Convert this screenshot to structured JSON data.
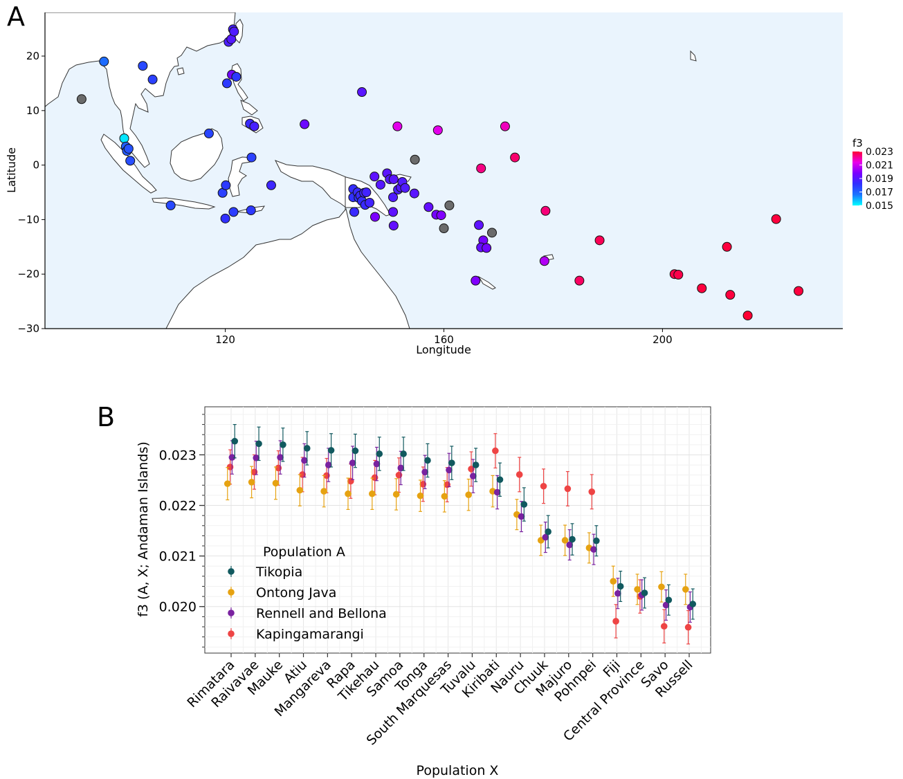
{
  "chart_data": [
    {
      "panel": "A",
      "type": "scatter",
      "xlabel": "Longitude",
      "ylabel": "Latitude",
      "xlim": [
        87,
        233
      ],
      "ylim": [
        -30,
        28
      ],
      "x_ticks": [
        120,
        160,
        200
      ],
      "y_ticks": [
        -30,
        -20,
        -10,
        0,
        10,
        20
      ],
      "legend": {
        "title": "f3",
        "placement": "right",
        "ticks": [
          "0.023",
          "0.021",
          "0.019",
          "0.017",
          "0.015"
        ],
        "min": 0.015,
        "max": 0.023
      },
      "colors": {
        "ocean": "#eaf4fd",
        "land": "#ffffff",
        "coast": "#333333",
        "missing": "#6b6b6b"
      },
      "points": [
        {
          "x": 93.7,
          "y": 12.1,
          "f3": null
        },
        {
          "x": 97.8,
          "y": 19.0,
          "f3": 0.0168
        },
        {
          "x": 101.5,
          "y": 4.9,
          "f3": 0.0153
        },
        {
          "x": 101.8,
          "y": 3.4,
          "f3": 0.0171
        },
        {
          "x": 102.0,
          "y": 2.6,
          "f3": 0.0172
        },
        {
          "x": 102.3,
          "y": 3.0,
          "f3": 0.0174
        },
        {
          "x": 102.6,
          "y": 0.8,
          "f3": 0.0175
        },
        {
          "x": 104.9,
          "y": 18.2,
          "f3": 0.0176
        },
        {
          "x": 106.7,
          "y": 15.7,
          "f3": 0.0178
        },
        {
          "x": 110.0,
          "y": -7.4,
          "f3": 0.0176
        },
        {
          "x": 117.0,
          "y": 5.8,
          "f3": 0.0177
        },
        {
          "x": 119.5,
          "y": -5.1,
          "f3": 0.0178
        },
        {
          "x": 120.0,
          "y": -9.8,
          "f3": 0.0182
        },
        {
          "x": 120.1,
          "y": -3.7,
          "f3": 0.018
        },
        {
          "x": 120.3,
          "y": 15.0,
          "f3": 0.018
        },
        {
          "x": 120.6,
          "y": 22.6,
          "f3": 0.0188
        },
        {
          "x": 121.1,
          "y": 23.1,
          "f3": 0.019
        },
        {
          "x": 121.4,
          "y": 24.9,
          "f3": 0.0187
        },
        {
          "x": 121.6,
          "y": 24.5,
          "f3": 0.0189
        },
        {
          "x": 121.2,
          "y": 16.6,
          "f3": 0.0196
        },
        {
          "x": 122.0,
          "y": 16.2,
          "f3": 0.018
        },
        {
          "x": 121.5,
          "y": -8.6,
          "f3": 0.0179
        },
        {
          "x": 124.5,
          "y": 7.6,
          "f3": 0.0184
        },
        {
          "x": 125.3,
          "y": 7.1,
          "f3": 0.0187
        },
        {
          "x": 124.8,
          "y": 1.4,
          "f3": 0.0178
        },
        {
          "x": 124.7,
          "y": -8.3,
          "f3": 0.018
        },
        {
          "x": 128.4,
          "y": -3.7,
          "f3": 0.0185
        },
        {
          "x": 134.5,
          "y": 7.5,
          "f3": 0.0195
        },
        {
          "x": 143.4,
          "y": -4.4,
          "f3": 0.0183
        },
        {
          "x": 143.4,
          "y": -5.9,
          "f3": 0.0182
        },
        {
          "x": 143.6,
          "y": -8.6,
          "f3": 0.0184
        },
        {
          "x": 144.2,
          "y": -5.0,
          "f3": 0.0184
        },
        {
          "x": 144.4,
          "y": -6.0,
          "f3": 0.0182
        },
        {
          "x": 144.7,
          "y": -5.6,
          "f3": 0.0184
        },
        {
          "x": 145.0,
          "y": -6.6,
          "f3": 0.0183
        },
        {
          "x": 145.4,
          "y": -5.1,
          "f3": 0.0185
        },
        {
          "x": 145.6,
          "y": -7.3,
          "f3": 0.0184
        },
        {
          "x": 145.8,
          "y": -5.0,
          "f3": 0.0186
        },
        {
          "x": 146.4,
          "y": -6.9,
          "f3": 0.0186
        },
        {
          "x": 147.3,
          "y": -2.1,
          "f3": 0.0192
        },
        {
          "x": 147.4,
          "y": -9.5,
          "f3": 0.0198
        },
        {
          "x": 148.4,
          "y": -3.6,
          "f3": 0.019
        },
        {
          "x": 149.6,
          "y": -1.5,
          "f3": 0.0191
        },
        {
          "x": 150.1,
          "y": -2.6,
          "f3": 0.019
        },
        {
          "x": 150.8,
          "y": -2.6,
          "f3": 0.0191
        },
        {
          "x": 150.7,
          "y": -5.9,
          "f3": 0.0189
        },
        {
          "x": 150.7,
          "y": -8.6,
          "f3": 0.0192
        },
        {
          "x": 150.8,
          "y": -11.1,
          "f3": 0.0193
        },
        {
          "x": 151.6,
          "y": -4.5,
          "f3": 0.0188
        },
        {
          "x": 152.1,
          "y": -4.1,
          "f3": 0.019
        },
        {
          "x": 152.4,
          "y": -3.1,
          "f3": 0.0189
        },
        {
          "x": 152.9,
          "y": -4.2,
          "f3": 0.0189
        },
        {
          "x": 154.6,
          "y": -5.2,
          "f3": 0.0191
        },
        {
          "x": 157.2,
          "y": -7.7,
          "f3": 0.0193
        },
        {
          "x": 158.6,
          "y": -9.1,
          "f3": 0.0197
        },
        {
          "x": 159.5,
          "y": -9.2,
          "f3": 0.0199
        },
        {
          "x": 145.0,
          "y": 13.4,
          "f3": 0.0191
        },
        {
          "x": 151.5,
          "y": 7.1,
          "f3": 0.0213
        },
        {
          "x": 158.9,
          "y": 6.4,
          "f3": 0.0213
        },
        {
          "x": 154.7,
          "y": 1.0,
          "f3": null
        },
        {
          "x": 161.0,
          "y": -7.4,
          "f3": null
        },
        {
          "x": 160.0,
          "y": -11.6,
          "f3": null
        },
        {
          "x": 168.8,
          "y": -12.4,
          "f3": null
        },
        {
          "x": 166.8,
          "y": -0.6,
          "f3": 0.0223
        },
        {
          "x": 171.2,
          "y": 7.1,
          "f3": 0.0218
        },
        {
          "x": 173.0,
          "y": 1.4,
          "f3": 0.0225
        },
        {
          "x": 166.4,
          "y": -11.0,
          "f3": 0.0192
        },
        {
          "x": 167.2,
          "y": -13.8,
          "f3": 0.0197
        },
        {
          "x": 166.8,
          "y": -15.1,
          "f3": 0.0193
        },
        {
          "x": 167.8,
          "y": -15.2,
          "f3": 0.0196
        },
        {
          "x": 165.8,
          "y": -21.2,
          "f3": 0.0199
        },
        {
          "x": 178.4,
          "y": -17.6,
          "f3": 0.0206
        },
        {
          "x": 178.6,
          "y": -8.4,
          "f3": 0.0224
        },
        {
          "x": 184.8,
          "y": -21.2,
          "f3": 0.0226
        },
        {
          "x": 188.5,
          "y": -13.8,
          "f3": 0.0227
        },
        {
          "x": 202.2,
          "y": -20.0,
          "f3": 0.0228
        },
        {
          "x": 202.9,
          "y": -20.1,
          "f3": 0.0228
        },
        {
          "x": 207.2,
          "y": -22.6,
          "f3": 0.0229
        },
        {
          "x": 211.8,
          "y": -15.0,
          "f3": 0.0229
        },
        {
          "x": 212.4,
          "y": -23.8,
          "f3": 0.0229
        },
        {
          "x": 215.6,
          "y": -27.6,
          "f3": 0.023
        },
        {
          "x": 220.8,
          "y": -9.9,
          "f3": 0.0229
        },
        {
          "x": 224.9,
          "y": -23.1,
          "f3": 0.0229
        }
      ]
    },
    {
      "panel": "B",
      "type": "scatter",
      "xlabel": "Population X",
      "ylabel": "f3 (A, X; Andaman Islands)",
      "ylim": [
        0.01908,
        0.02395
      ],
      "y_ticks": [
        "0.020",
        "0.021",
        "0.022",
        "0.023"
      ],
      "categories": [
        "Rimatara",
        "Raivavae",
        "Mauke",
        "Atiu",
        "Mangareva",
        "Rapa",
        "Tikehau",
        "Samoa",
        "Tonga",
        "South Marquesas",
        "Tuvalu",
        "Kiribati",
        "Nauru",
        "Chuuk",
        "Majuro",
        "Pohnpei",
        "Fiji",
        "Central Province",
        "Savo",
        "Russell"
      ],
      "legend": {
        "title": "Population A",
        "placement": "bottom-left"
      },
      "series": [
        {
          "name": "Tikopia",
          "color": "#11595f",
          "offset": 0.15,
          "values": [
            0.02327,
            0.02322,
            0.0232,
            0.02313,
            0.02309,
            0.02308,
            0.02302,
            0.02302,
            0.02289,
            0.02284,
            0.0228,
            0.02251,
            0.02202,
            0.02148,
            0.02133,
            0.0213,
            0.0204,
            0.02027,
            0.02013,
            0.02005
          ],
          "errors": [
            0.00033,
            0.00033,
            0.00033,
            0.00033,
            0.00033,
            0.00033,
            0.00033,
            0.00033,
            0.00033,
            0.00033,
            0.00033,
            0.00033,
            0.00033,
            0.00032,
            0.00031,
            0.0003,
            0.0003,
            0.0003,
            0.0003,
            0.0003
          ]
        },
        {
          "name": "Ontong Java",
          "color": "#e6a211",
          "offset": -0.15,
          "values": [
            0.02243,
            0.02246,
            0.02244,
            0.0223,
            0.02228,
            0.02223,
            0.02223,
            0.02222,
            0.02219,
            0.02218,
            0.02221,
            0.02228,
            0.02182,
            0.02131,
            0.02131,
            0.02116,
            0.0205,
            0.02034,
            0.02039,
            0.02034
          ],
          "errors": [
            0.00032,
            0.00031,
            0.00032,
            0.00031,
            0.00031,
            0.00031,
            0.00031,
            0.00031,
            0.00031,
            0.00031,
            0.00031,
            0.00031,
            0.0003,
            0.0003,
            0.0003,
            0.0003,
            0.0003,
            0.0003,
            0.0003,
            0.0003
          ]
        },
        {
          "name": "Rennell and Bellona",
          "color": "#7a22a0",
          "offset": 0.04,
          "values": [
            0.02295,
            0.02294,
            0.02295,
            0.02289,
            0.0228,
            0.02284,
            0.02282,
            0.02274,
            0.02266,
            0.0227,
            0.02258,
            0.02226,
            0.02178,
            0.02137,
            0.02122,
            0.02113,
            0.02026,
            0.02023,
            0.02003,
            0.01999
          ],
          "errors": [
            0.00033,
            0.00033,
            0.00033,
            0.00033,
            0.00033,
            0.00033,
            0.00033,
            0.00033,
            0.00033,
            0.00033,
            0.00033,
            0.00033,
            0.0003,
            0.0003,
            0.0003,
            0.0003,
            0.0003,
            0.0003,
            0.0003,
            0.0003
          ]
        },
        {
          "name": "Kapingamarangi",
          "color": "#ee4444",
          "offset": -0.04,
          "values": [
            0.02276,
            0.02266,
            0.02274,
            0.02261,
            0.02259,
            0.02248,
            0.02255,
            0.0226,
            0.02242,
            0.02241,
            0.02272,
            0.02308,
            0.02261,
            0.02238,
            0.02233,
            0.02227,
            0.01971,
            0.0202,
            0.01961,
            0.01959
          ],
          "errors": [
            0.00034,
            0.00034,
            0.00034,
            0.00034,
            0.00034,
            0.00034,
            0.00034,
            0.00034,
            0.00034,
            0.00034,
            0.00034,
            0.00034,
            0.00034,
            0.00034,
            0.00034,
            0.00034,
            0.00033,
            0.00033,
            0.00033,
            0.00033
          ]
        }
      ]
    }
  ]
}
